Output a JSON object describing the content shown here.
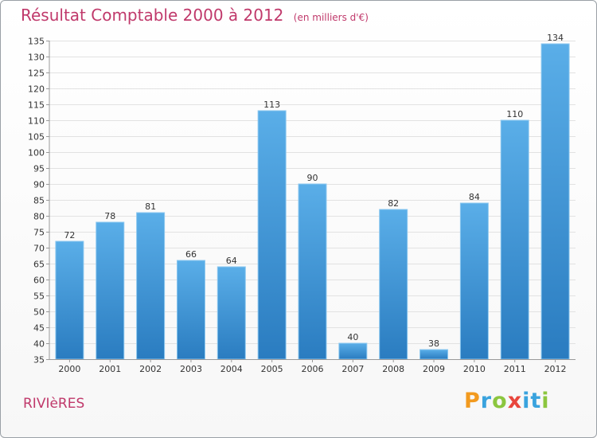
{
  "chart_data": {
    "type": "bar",
    "title": "Résultat Comptable 2000 à 2012",
    "subtitle": "(en milliers d'€)",
    "categories": [
      "2000",
      "2001",
      "2002",
      "2003",
      "2004",
      "2005",
      "2006",
      "2007",
      "2008",
      "2009",
      "2010",
      "2011",
      "2012"
    ],
    "values": [
      72,
      78,
      81,
      66,
      64,
      113,
      90,
      40,
      82,
      38,
      84,
      110,
      134
    ],
    "ylim": [
      35,
      135
    ],
    "ytick_step": 5,
    "xlabel": "",
    "ylabel": "",
    "grid": true,
    "bar_color": "#3a8fd6"
  },
  "commune": "RIVIèRES",
  "logo": {
    "p": "P",
    "r": "r",
    "o": "o",
    "x": "x",
    "i": "i",
    "t": "t",
    "i2": "i"
  }
}
